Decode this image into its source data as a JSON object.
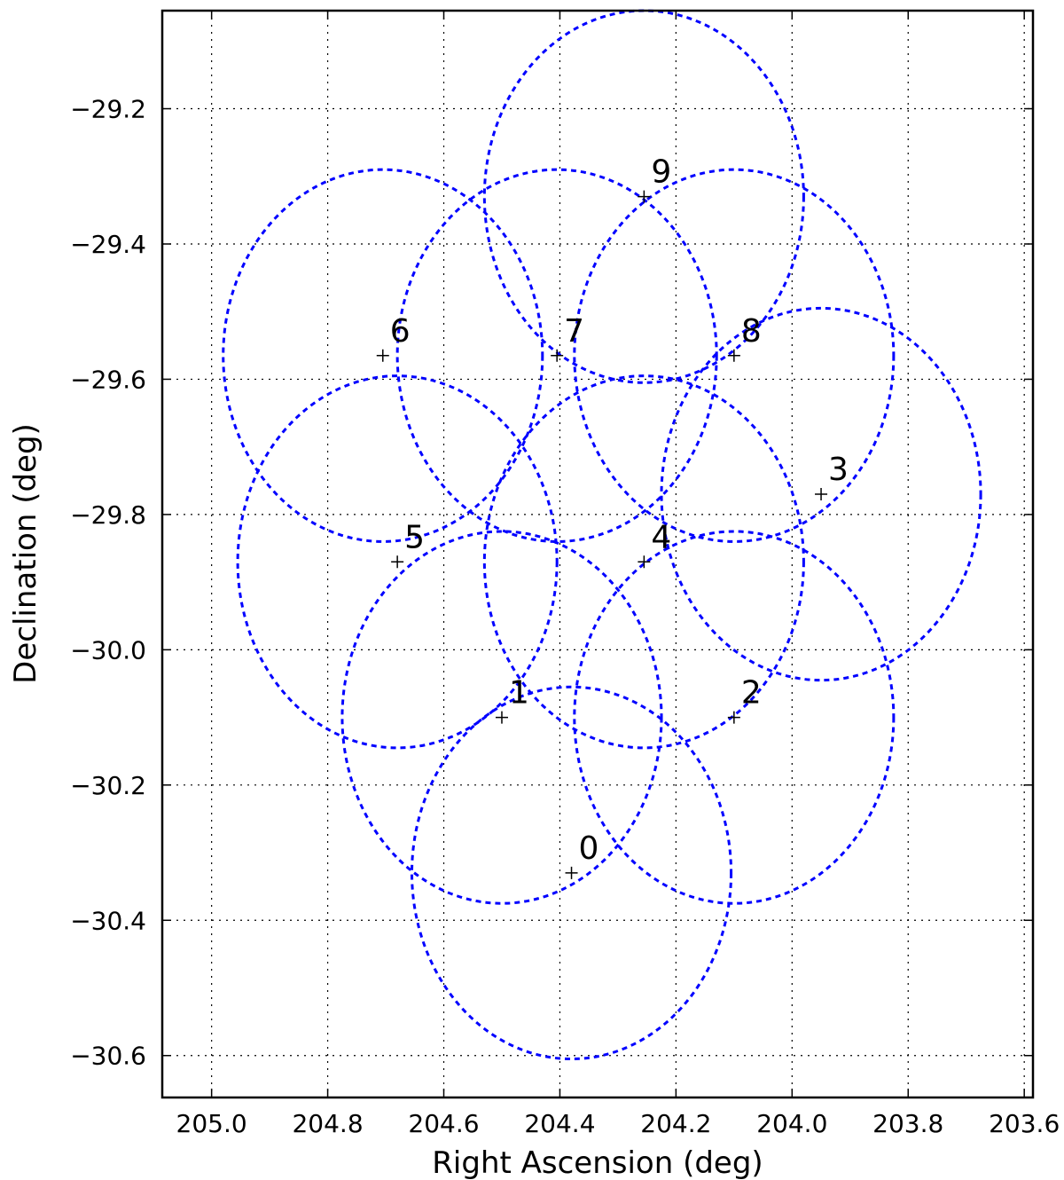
{
  "chart_data": {
    "type": "scatter",
    "title": "",
    "xlabel": "Right Ascension (deg)",
    "ylabel": "Declination (deg)",
    "x_inverted": true,
    "xlim": [
      205.085,
      203.585
    ],
    "ylim": [
      -30.662,
      -29.055
    ],
    "grid": true,
    "x_ticks": [
      205.0,
      204.8,
      204.6,
      204.4,
      204.2,
      204.0,
      203.8,
      203.6
    ],
    "x_tick_labels": [
      "205.0",
      "204.8",
      "204.6",
      "204.4",
      "204.2",
      "204.0",
      "203.8",
      "203.6"
    ],
    "y_ticks": [
      -29.2,
      -29.4,
      -29.6,
      -29.8,
      -30.0,
      -30.2,
      -30.4,
      -30.6
    ],
    "y_tick_labels": [
      "−29.2",
      "−29.4",
      "−29.6",
      "−29.8",
      "−30.0",
      "−30.2",
      "−30.4",
      "−30.6"
    ],
    "circle_radius_deg": 0.275,
    "circle_color": "#0000ff",
    "marker_color": "#000000",
    "pointings": [
      {
        "label": "0",
        "ra": 204.38,
        "dec": -30.33
      },
      {
        "label": "1",
        "ra": 204.5,
        "dec": -30.1
      },
      {
        "label": "2",
        "ra": 204.1,
        "dec": -30.1
      },
      {
        "label": "3",
        "ra": 203.95,
        "dec": -29.77
      },
      {
        "label": "4",
        "ra": 204.255,
        "dec": -29.87
      },
      {
        "label": "5",
        "ra": 204.68,
        "dec": -29.87
      },
      {
        "label": "6",
        "ra": 204.705,
        "dec": -29.565
      },
      {
        "label": "7",
        "ra": 204.405,
        "dec": -29.565
      },
      {
        "label": "8",
        "ra": 204.1,
        "dec": -29.565
      },
      {
        "label": "9",
        "ra": 204.255,
        "dec": -29.33
      }
    ]
  }
}
